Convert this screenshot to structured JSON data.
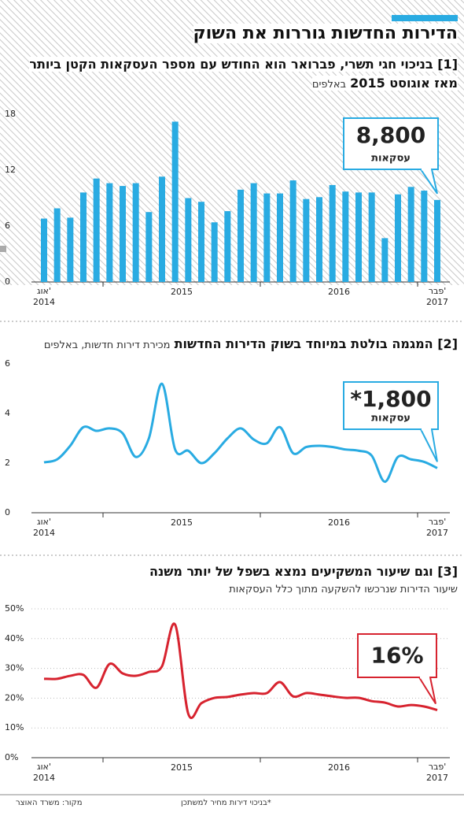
{
  "title": "הדירות החדשות גוררות את השוק",
  "footer": {
    "source": "מקור: משרד האוצר",
    "note": "*בניכוי דירות מחיר למשתכן"
  },
  "chart_data": [
    {
      "type": "bar",
      "title": "[1] בניכוי חגי תשרי, פברואר הוא החודש עם מספר העסקאות הקטן ביותר מאז אוגוסט 2015",
      "subtitle": "באלפים",
      "categories": [
        "אוג'",
        null,
        null,
        null,
        null,
        null,
        null,
        null,
        null,
        null,
        null,
        null,
        null,
        null,
        null,
        null,
        null,
        null,
        null,
        null,
        null,
        null,
        null,
        null,
        null,
        null,
        null,
        null,
        null,
        null,
        "פבר'"
      ],
      "years": [
        "2014",
        "2015",
        "2016",
        "2017"
      ],
      "values": [
        6.8,
        7.9,
        6.9,
        9.6,
        11.1,
        10.6,
        10.3,
        10.6,
        7.5,
        11.3,
        17.2,
        9.0,
        8.6,
        6.4,
        7.6,
        9.9,
        10.6,
        9.5,
        9.5,
        10.9,
        8.9,
        9.1,
        10.4,
        9.7,
        9.6,
        9.6,
        4.7,
        9.4,
        10.2,
        9.8,
        8.8
      ],
      "color": "#29abe2",
      "ylim": [
        0,
        18
      ],
      "yticks": [
        0,
        6,
        12,
        18
      ],
      "grid": false,
      "callout": {
        "label": "8,800",
        "unit": "עסקאות"
      }
    },
    {
      "type": "line",
      "title": "[2] המגמה בולטת במיוחד בשוק הדירות החדשות",
      "subtitle": "מכירת דירות חדשות, באלפים",
      "categories": [
        "אוג'",
        null,
        null,
        null,
        null,
        null,
        null,
        null,
        null,
        null,
        null,
        null,
        null,
        null,
        null,
        null,
        null,
        null,
        null,
        null,
        null,
        null,
        null,
        null,
        null,
        null,
        null,
        null,
        null,
        null,
        "פבר'"
      ],
      "years": [
        "2014",
        "2015",
        "2016",
        "2017"
      ],
      "values": [
        2.03,
        2.15,
        2.7,
        3.45,
        3.3,
        3.4,
        3.2,
        2.25,
        3.0,
        5.2,
        2.55,
        2.5,
        2.0,
        2.4,
        3.0,
        3.4,
        2.95,
        2.8,
        3.45,
        2.4,
        2.65,
        2.7,
        2.65,
        2.55,
        2.5,
        2.3,
        1.25,
        2.25,
        2.15,
        2.05,
        1.8
      ],
      "color": "#29abe2",
      "ylim": [
        0,
        6
      ],
      "yticks": [
        0,
        2,
        4,
        6
      ],
      "grid": false,
      "callout": {
        "label": "*1,800",
        "unit": "עסקאות"
      }
    },
    {
      "type": "line",
      "title": "[3] וגם שיעור המשקיעים נמצא בשפל של יותר משנה",
      "subtitle": "שיעור הדירות שנרכשו להשקעה מתוך כלל העסקאות",
      "categories": [
        "אוג'",
        null,
        null,
        null,
        null,
        null,
        null,
        null,
        null,
        null,
        null,
        null,
        null,
        null,
        null,
        null,
        null,
        null,
        null,
        null,
        null,
        null,
        null,
        null,
        null,
        null,
        null,
        null,
        null,
        null,
        "פבר'"
      ],
      "years": [
        "2014",
        "2015",
        "2016",
        "2017"
      ],
      "values": [
        26.5,
        26.5,
        27.5,
        27.8,
        23.5,
        31.5,
        28.3,
        27.5,
        28.8,
        30.7,
        44.7,
        14.8,
        18.3,
        20.1,
        20.4,
        21.2,
        21.7,
        21.7,
        25.4,
        20.6,
        21.7,
        21.2,
        20.6,
        20.1,
        20.1,
        19.0,
        18.5,
        17.2,
        17.7,
        17.2,
        16
      ],
      "color": "#d7232f",
      "ylim": [
        0,
        50
      ],
      "yticks": [
        {
          "value": 0,
          "label": "0%"
        },
        {
          "value": 10,
          "label": "10%"
        },
        {
          "value": 20,
          "label": "20%"
        },
        {
          "value": 30,
          "label": "30%"
        },
        {
          "value": 40,
          "label": "40%"
        },
        {
          "value": 50,
          "label": "50%"
        }
      ],
      "grid": true,
      "callout": {
        "label": "16%"
      }
    }
  ]
}
